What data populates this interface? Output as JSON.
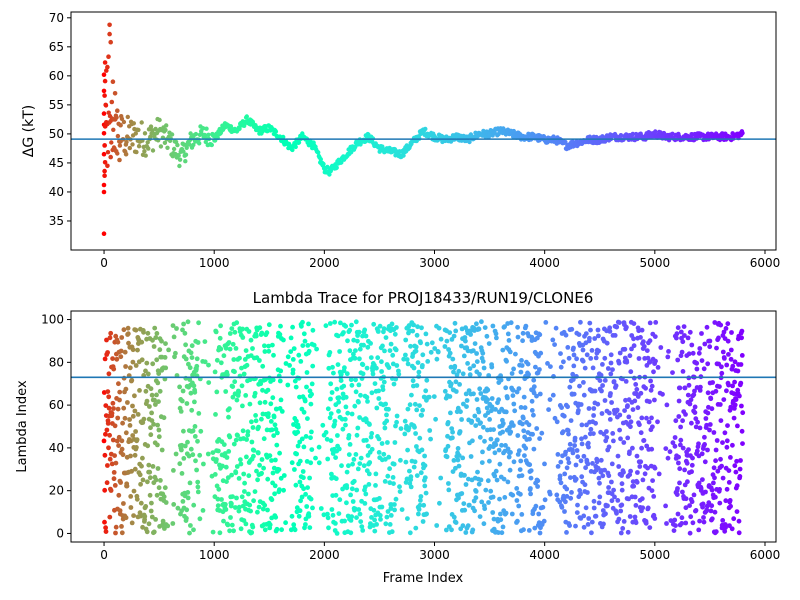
{
  "colors": {
    "hline": "#1f77b4",
    "colormap": "rainbow"
  },
  "chart_data": [
    {
      "type": "scatter",
      "title": "",
      "xlabel": "",
      "ylabel": "ΔG (kT)",
      "xlim": [
        -300,
        6100
      ],
      "ylim": [
        30,
        71
      ],
      "xticks": [
        0,
        1000,
        2000,
        3000,
        4000,
        5000,
        6000
      ],
      "yticks": [
        35,
        40,
        45,
        50,
        55,
        60,
        65,
        70
      ],
      "hline": 49.1,
      "grid": false,
      "n_frames": 5800,
      "trend": [
        [
          0,
          50.0
        ],
        [
          100,
          50.0
        ],
        [
          200,
          49.5
        ],
        [
          300,
          49.5
        ],
        [
          400,
          49.0
        ],
        [
          500,
          50.5
        ],
        [
          600,
          48.5
        ],
        [
          700,
          46.0
        ],
        [
          800,
          49.0
        ],
        [
          900,
          50.0
        ],
        [
          1000,
          49.0
        ],
        [
          1100,
          51.5
        ],
        [
          1200,
          50.5
        ],
        [
          1300,
          52.5
        ],
        [
          1400,
          50.5
        ],
        [
          1500,
          51.0
        ],
        [
          1600,
          49.5
        ],
        [
          1700,
          47.5
        ],
        [
          1800,
          49.5
        ],
        [
          1900,
          48.0
        ],
        [
          2000,
          44.0
        ],
        [
          2050,
          43.5
        ],
        [
          2100,
          44.5
        ],
        [
          2200,
          46.5
        ],
        [
          2300,
          48.5
        ],
        [
          2400,
          49.5
        ],
        [
          2500,
          47.5
        ],
        [
          2600,
          47.0
        ],
        [
          2700,
          46.5
        ],
        [
          2800,
          48.5
        ],
        [
          2900,
          50.5
        ],
        [
          3000,
          49.5
        ],
        [
          3100,
          49.0
        ],
        [
          3200,
          49.5
        ],
        [
          3300,
          49.0
        ],
        [
          3400,
          50.0
        ],
        [
          3500,
          50.0
        ],
        [
          3600,
          50.5
        ],
        [
          3700,
          50.0
        ],
        [
          3800,
          49.5
        ],
        [
          3900,
          49.5
        ],
        [
          4000,
          49.0
        ],
        [
          4100,
          49.0
        ],
        [
          4200,
          48.0
        ],
        [
          4300,
          48.5
        ],
        [
          4400,
          49.0
        ],
        [
          4500,
          49.0
        ],
        [
          4600,
          49.5
        ],
        [
          4700,
          49.5
        ],
        [
          4800,
          49.5
        ],
        [
          4900,
          49.5
        ],
        [
          5000,
          50.0
        ],
        [
          5100,
          49.5
        ],
        [
          5200,
          49.5
        ],
        [
          5300,
          49.5
        ],
        [
          5400,
          49.5
        ],
        [
          5500,
          49.5
        ],
        [
          5600,
          49.5
        ],
        [
          5700,
          49.5
        ],
        [
          5800,
          50.0
        ]
      ],
      "early_points": [
        [
          0,
          32.8
        ],
        [
          0,
          40.0
        ],
        [
          0,
          41.2
        ],
        [
          5,
          42.8
        ],
        [
          5,
          43.6
        ],
        [
          10,
          45.1
        ],
        [
          0,
          46.5
        ],
        [
          5,
          48.0
        ],
        [
          0,
          50.1
        ],
        [
          10,
          51.3
        ],
        [
          20,
          52.0
        ],
        [
          0,
          53.5
        ],
        [
          15,
          55.0
        ],
        [
          5,
          56.6
        ],
        [
          0,
          57.4
        ],
        [
          10,
          59.1
        ],
        [
          0,
          60.2
        ],
        [
          20,
          60.9
        ],
        [
          30,
          61.5
        ],
        [
          10,
          62.3
        ],
        [
          40,
          63.3
        ],
        [
          60,
          65.8
        ],
        [
          50,
          67.2
        ],
        [
          50,
          68.8
        ],
        [
          80,
          59.0
        ],
        [
          100,
          57.0
        ],
        [
          70,
          55.5
        ],
        [
          120,
          54.0
        ],
        [
          90,
          52.5
        ],
        [
          150,
          51.5
        ],
        [
          30,
          44.5
        ],
        [
          60,
          46.0
        ],
        [
          110,
          47.0
        ],
        [
          140,
          45.5
        ],
        [
          200,
          46.5
        ]
      ]
    },
    {
      "type": "scatter",
      "title": "Lambda Trace for PROJ18433/RUN19/CLONE6",
      "xlabel": "Frame Index",
      "ylabel": "Lambda Index",
      "xlim": [
        -300,
        6100
      ],
      "ylim": [
        -4,
        104
      ],
      "xticks": [
        0,
        1000,
        2000,
        3000,
        4000,
        5000,
        6000
      ],
      "yticks": [
        0,
        20,
        40,
        60,
        80,
        100
      ],
      "hline": 73,
      "grid": false,
      "n_frames": 5800,
      "value_range": [
        0,
        99
      ]
    }
  ]
}
